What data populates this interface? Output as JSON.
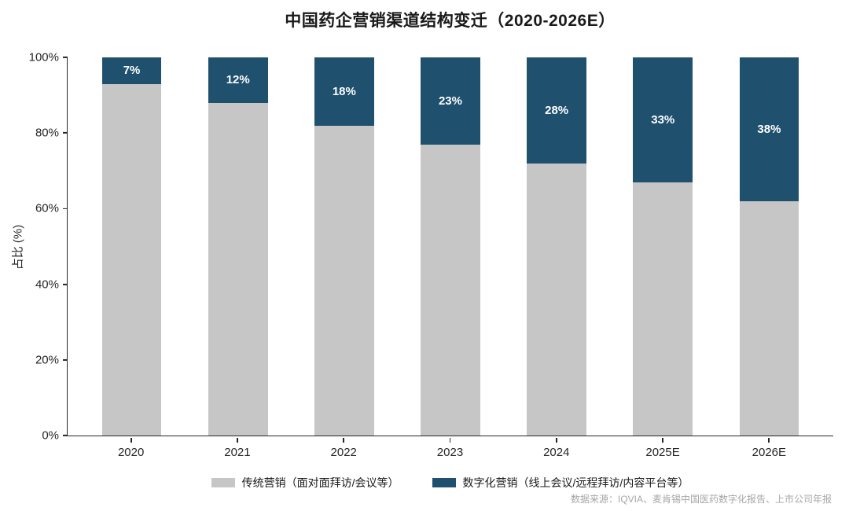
{
  "title": "中国药企营销渠道结构变迁（2020-2026E）",
  "source": "数据来源：IQVIA、麦肯锡中国医药数字化报告、上市公司年报",
  "chart_data": {
    "type": "bar",
    "stacked": true,
    "title": "中国药企营销渠道结构变迁（2020-2026E）",
    "categories": [
      "2020",
      "2021",
      "2022",
      "2023",
      "2024",
      "2025E",
      "2026E"
    ],
    "series": [
      {
        "name": "传统营销（面对面拜访/会议等）",
        "color": "#c6c6c6",
        "position": "bottom",
        "values": [
          93,
          88,
          82,
          77,
          72,
          67,
          62
        ]
      },
      {
        "name": "数字化营销（线上会议/远程拜访/内容平台等）",
        "color": "#1f506e",
        "position": "top",
        "values": [
          7,
          12,
          18,
          23,
          28,
          33,
          38
        ],
        "data_labels": [
          "7%",
          "12%",
          "18%",
          "23%",
          "28%",
          "33%",
          "38%"
        ]
      }
    ],
    "xlabel": "",
    "ylabel": "占比 (%)",
    "yticks": [
      "0%",
      "20%",
      "40%",
      "60%",
      "80%",
      "100%"
    ],
    "ylim": [
      0,
      100
    ],
    "grid": false,
    "legend_position": "bottom",
    "axis_color": "#262626",
    "label_text_color": "#ffffff"
  }
}
